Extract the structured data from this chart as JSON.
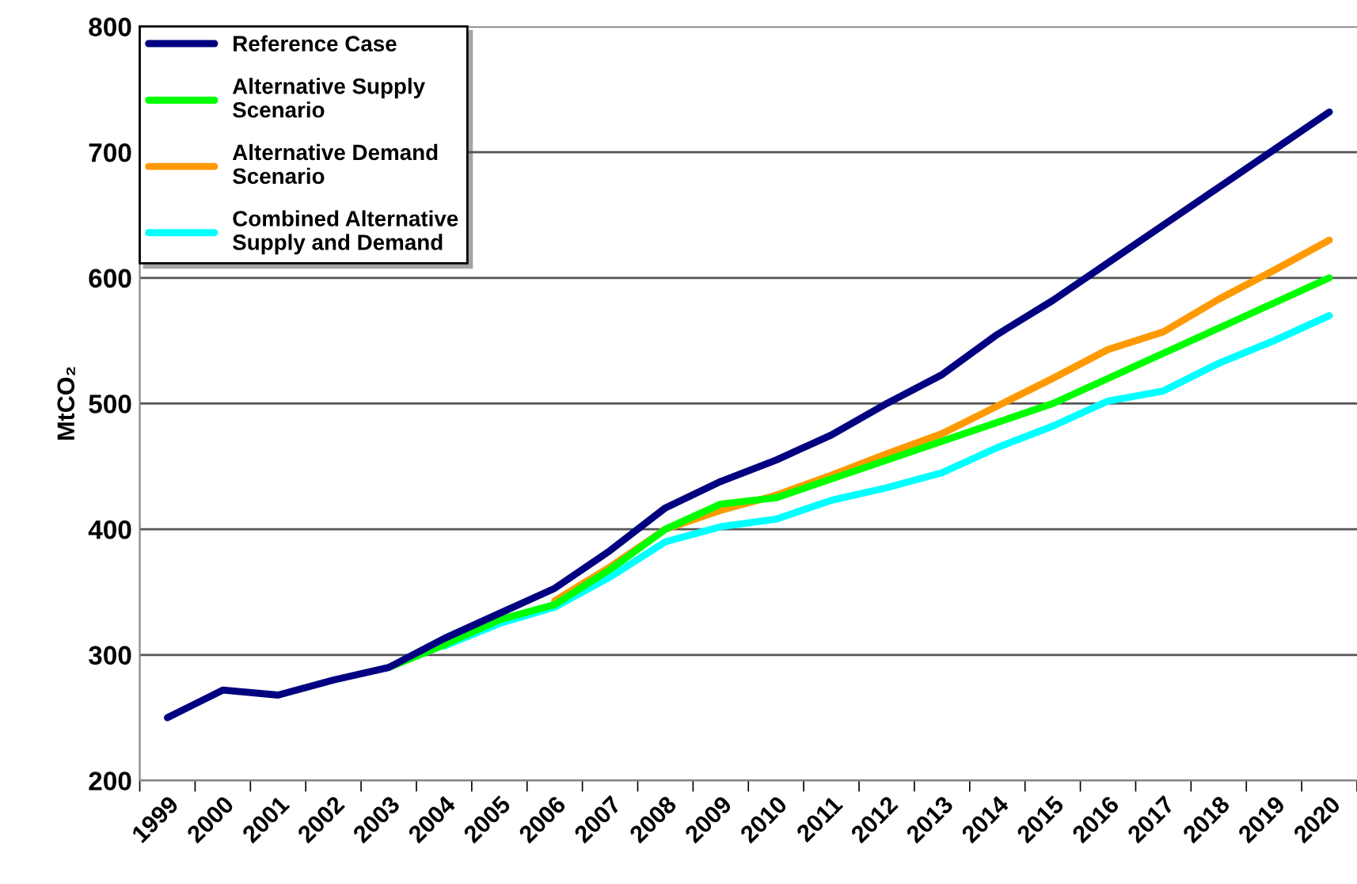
{
  "chart_data": {
    "type": "line",
    "ylabel": "MtCO₂",
    "categories": [
      "1999",
      "2000",
      "2001",
      "2002",
      "2003",
      "2004",
      "2005",
      "2006",
      "2007",
      "2008",
      "2009",
      "2010",
      "2011",
      "2012",
      "2013",
      "2014",
      "2015",
      "2016",
      "2017",
      "2018",
      "2019",
      "2020"
    ],
    "series": [
      {
        "name": "Reference Case",
        "color": "#000080",
        "values": [
          250,
          272,
          268,
          280,
          290,
          313,
          333,
          353,
          383,
          417,
          438,
          455,
          475,
          500,
          523,
          555,
          582,
          612,
          642,
          672,
          702,
          732
        ]
      },
      {
        "name": "Alternative Supply\nScenario",
        "color": "#00ff00",
        "values": [
          null,
          null,
          null,
          null,
          290,
          308,
          328,
          340,
          368,
          400,
          420,
          425,
          440,
          455,
          470,
          485,
          500,
          520,
          540,
          560,
          580,
          600
        ]
      },
      {
        "name": "Alternative Demand\nScenario",
        "color": "#ff9900",
        "values": [
          null,
          null,
          null,
          null,
          null,
          null,
          null,
          343,
          370,
          400,
          415,
          427,
          443,
          460,
          476,
          498,
          520,
          543,
          557,
          583,
          606,
          630
        ]
      },
      {
        "name": "Combined Alternative\nSupply and Demand",
        "color": "#00ffff",
        "values": [
          null,
          null,
          null,
          null,
          null,
          307,
          325,
          338,
          362,
          390,
          402,
          408,
          423,
          433,
          445,
          465,
          482,
          502,
          510,
          532,
          550,
          570
        ]
      }
    ],
    "ylim": [
      200,
      800
    ],
    "yticks": [
      200,
      300,
      400,
      500,
      600,
      700,
      800
    ],
    "grid": "y",
    "legend": "top left",
    "marker": "none",
    "line_style": "solid"
  }
}
